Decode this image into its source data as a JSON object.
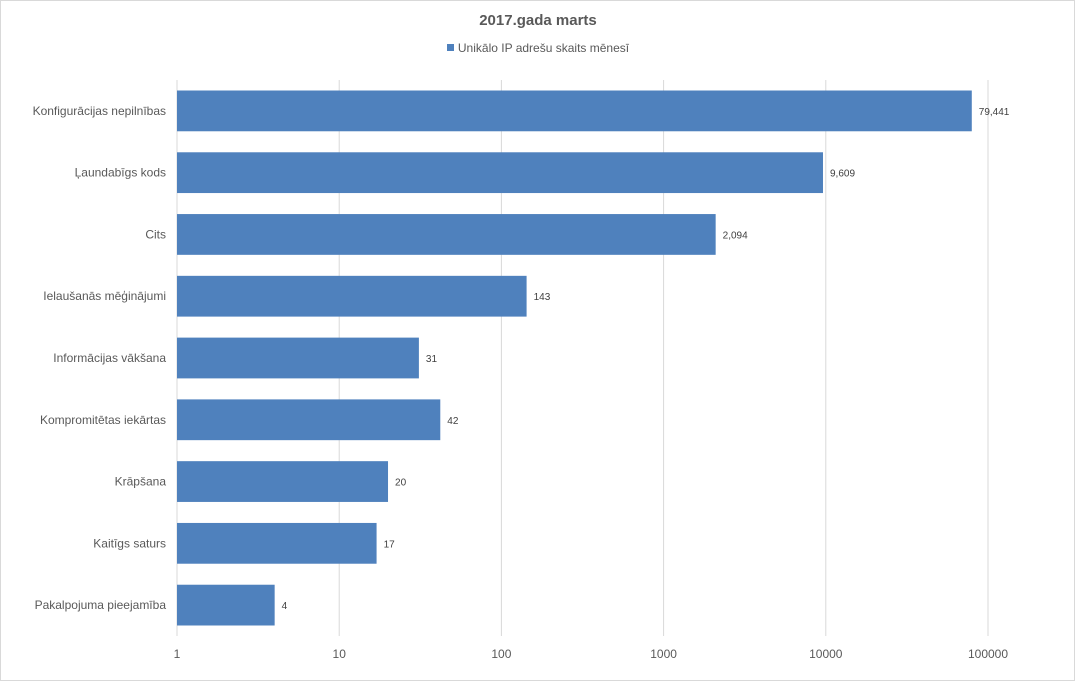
{
  "chart_data": {
    "type": "bar",
    "orientation": "horizontal",
    "title": "2017.gada marts",
    "legend_position": "top",
    "x_scale": "log",
    "xlim": [
      1,
      100000
    ],
    "x_ticks": [
      "1",
      "10",
      "100",
      "1000",
      "10000",
      "100000"
    ],
    "grid": true,
    "categories": [
      "Konfigurācijas nepilnības",
      "Ļaundabīgs kods",
      "Cits",
      "Ielaušanās mēģinājumi",
      "Informācijas vākšana",
      "Kompromitētas iekārtas",
      "Krāpšana",
      "Kaitīgs saturs",
      "Pakalpojuma pieejamība"
    ],
    "series": [
      {
        "name": "Unikālo IP adrešu skaits mēnesī",
        "color": "#4f81bd",
        "values": [
          79441,
          9609,
          2094,
          143,
          31,
          42,
          20,
          17,
          4
        ],
        "data_labels": [
          "79,441",
          "9,609",
          "2,094",
          "143",
          "31",
          "42",
          "20",
          "17",
          "4"
        ]
      }
    ]
  }
}
